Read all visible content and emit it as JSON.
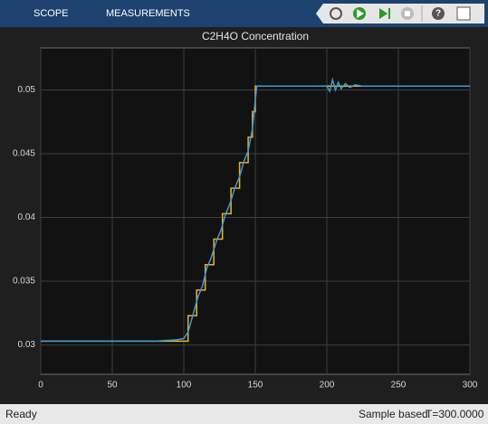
{
  "toolbar": {
    "tabs": [
      "SCOPE",
      "MEASUREMENTS"
    ]
  },
  "chart_data": {
    "type": "line",
    "title": "C2H4O Concentration",
    "series": [
      {
        "color": "#edb120",
        "x": [
          0,
          103,
          103,
          109,
          109,
          115,
          115,
          121,
          121,
          127,
          127,
          133,
          133,
          139,
          139,
          145,
          145,
          148,
          148,
          150,
          150,
          300
        ],
        "values": [
          0.0303,
          0.0303,
          0.0323,
          0.0323,
          0.0343,
          0.0343,
          0.0363,
          0.0363,
          0.0383,
          0.0383,
          0.0403,
          0.0403,
          0.0423,
          0.0423,
          0.0443,
          0.0443,
          0.0463,
          0.0463,
          0.0483,
          0.0483,
          0.0503,
          0.0503
        ]
      },
      {
        "color": "#3a9ad9",
        "x": [
          0,
          80,
          95,
          100,
          103,
          106,
          110,
          113,
          116,
          119,
          123,
          126,
          129,
          132,
          136,
          139,
          142,
          145,
          148,
          151,
          200,
          202,
          204,
          206,
          208,
          210,
          213,
          216,
          220,
          225,
          300
        ],
        "values": [
          0.0303,
          0.0303,
          0.0304,
          0.0305,
          0.031,
          0.0322,
          0.0338,
          0.0346,
          0.036,
          0.0368,
          0.0382,
          0.039,
          0.0402,
          0.041,
          0.0424,
          0.0432,
          0.0444,
          0.0452,
          0.047,
          0.0503,
          0.0503,
          0.0499,
          0.0508,
          0.05,
          0.0506,
          0.0501,
          0.0505,
          0.0502,
          0.0504,
          0.0503,
          0.0503
        ]
      }
    ],
    "xlim": [
      0,
      300
    ],
    "xticks": [
      0,
      50,
      100,
      150,
      200,
      250,
      300
    ],
    "ylim": [
      0.0277,
      0.0533
    ],
    "yticks": [
      0.03,
      0.035,
      0.04,
      0.045,
      0.05
    ],
    "grid": true
  },
  "status": {
    "left": "Ready",
    "mode": "Sample based",
    "time": "T=300.0000"
  }
}
